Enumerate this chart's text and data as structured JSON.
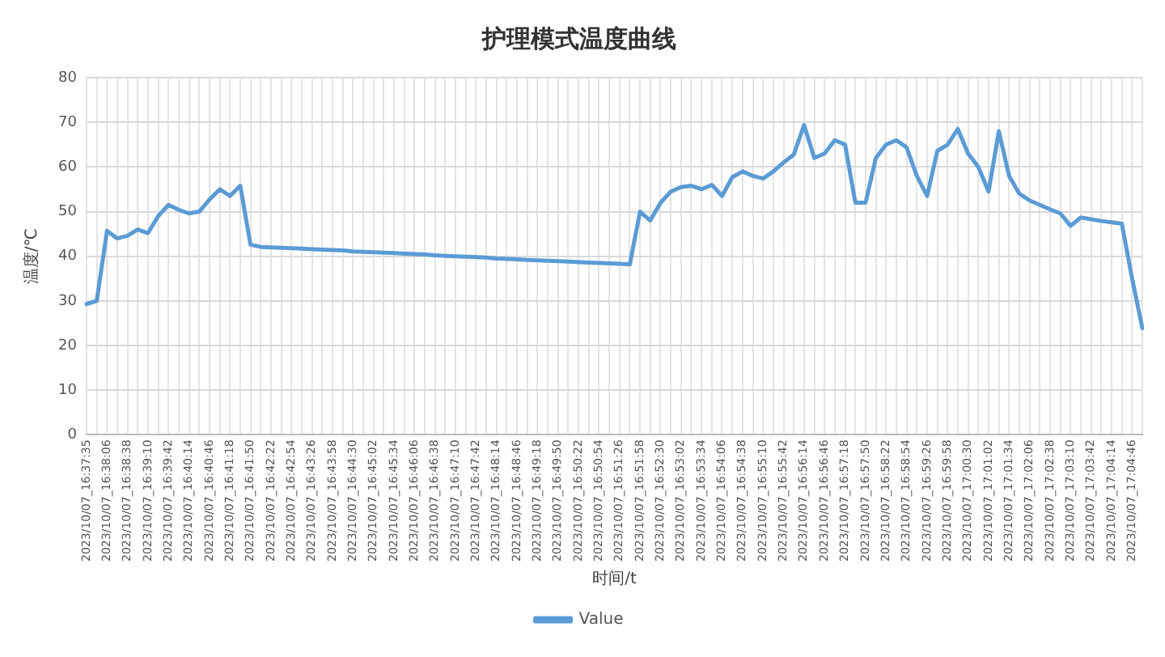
{
  "chart_data": {
    "type": "line",
    "title": "护理模式温度曲线",
    "xlabel": "时间/t",
    "ylabel": "温度/℃",
    "categories": [
      "2023/10/07_16:37:35",
      null,
      "2023/10/07_16:38:06",
      null,
      "2023/10/07_16:38:38",
      null,
      "2023/10/07_16:39:10",
      null,
      "2023/10/07_16:39:42",
      null,
      "2023/10/07_16:40:14",
      null,
      "2023/10/07_16:40:46",
      null,
      "2023/10/07_16:41:18",
      null,
      "2023/10/07_16:41:50",
      null,
      "2023/10/07_16:42:22",
      null,
      "2023/10/07_16:42:54",
      null,
      "2023/10/07_16:43:26",
      null,
      "2023/10/07_16:43:58",
      null,
      "2023/10/07_16:44:30",
      null,
      "2023/10/07_16:45:02",
      null,
      "2023/10/07_16:45:34",
      null,
      "2023/10/07_16:46:06",
      null,
      "2023/10/07_16:46:38",
      null,
      "2023/10/07_16:47:10",
      null,
      "2023/10/07_16:47:42",
      null,
      "2023/10/07_16:48:14",
      null,
      "2023/10/07_16:48:46",
      null,
      "2023/10/07_16:49:18",
      null,
      "2023/10/07_16:49:50",
      null,
      "2023/10/07_16:50:22",
      null,
      "2023/10/07_16:50:54",
      null,
      "2023/10/07_16:51:26",
      null,
      "2023/10/07_16:51:58",
      null,
      "2023/10/07_16:52:30",
      null,
      "2023/10/07_16:53:02",
      null,
      "2023/10/07_16:53:34",
      null,
      "2023/10/07_16:54:06",
      null,
      "2023/10/07_16:54:38",
      null,
      "2023/10/07_16:55:10",
      null,
      "2023/10/07_16:55:42",
      null,
      "2023/10/07_16:56:14",
      null,
      "2023/10/07_16:56:46",
      null,
      "2023/10/07_16:57:18",
      null,
      "2023/10/07_16:57:50",
      null,
      "2023/10/07_16:58:22",
      null,
      "2023/10/07_16:58:54",
      null,
      "2023/10/07_16:59:26",
      null,
      "2023/10/07_16:59:58",
      null,
      "2023/10/07_17:00:30",
      null,
      "2023/10/07_17:01:02",
      null,
      "2023/10/07_17:01:34",
      null,
      "2023/10/07_17:02:06",
      null,
      "2023/10/07_17:02:38",
      null,
      "2023/10/07_17:03:10",
      null,
      "2023/10/07_17:03:42",
      null,
      "2023/10/07_17:04:14",
      null,
      "2023/10/07_17:04:46",
      null
    ],
    "series": [
      {
        "name": "Value",
        "color": "#5b9bd5",
        "values": [
          29.3,
          30,
          45.7,
          44,
          44.6,
          46,
          45.2,
          49,
          51.5,
          50.4,
          49.6,
          50,
          52.7,
          55,
          53.5,
          55.8,
          42.6,
          42.1,
          42,
          41.9,
          41.8,
          41.7,
          41.6,
          41.5,
          41.4,
          41.3,
          41.1,
          41,
          40.9,
          40.8,
          40.7,
          40.6,
          40.5,
          40.4,
          40.2,
          40.1,
          40,
          39.9,
          39.8,
          39.7,
          39.5,
          39.4,
          39.3,
          39.2,
          39.1,
          39,
          38.9,
          38.8,
          38.7,
          38.6,
          38.5,
          38.4,
          38.3,
          38.2,
          50,
          48,
          52,
          54.5,
          55.5,
          55.8,
          55,
          56,
          53.5,
          57.7,
          59,
          58,
          57.4,
          59,
          61,
          62.8,
          69.4,
          62,
          63,
          66,
          65,
          52,
          52,
          62,
          65,
          66,
          64.4,
          58,
          53.5,
          63.6,
          65,
          68.5,
          63,
          60,
          54.5,
          68,
          58,
          54,
          52.5,
          51.5,
          50.5,
          49.6,
          46.8,
          48.7,
          48.3,
          47.9,
          47.6,
          47.3,
          35,
          23.9
        ]
      }
    ],
    "ylim": [
      0,
      80
    ],
    "yticks": [
      0,
      10,
      20,
      30,
      40,
      50,
      60,
      70,
      80
    ],
    "grid": true,
    "legend": "bottom",
    "marker": "none",
    "line_style": "solid"
  }
}
